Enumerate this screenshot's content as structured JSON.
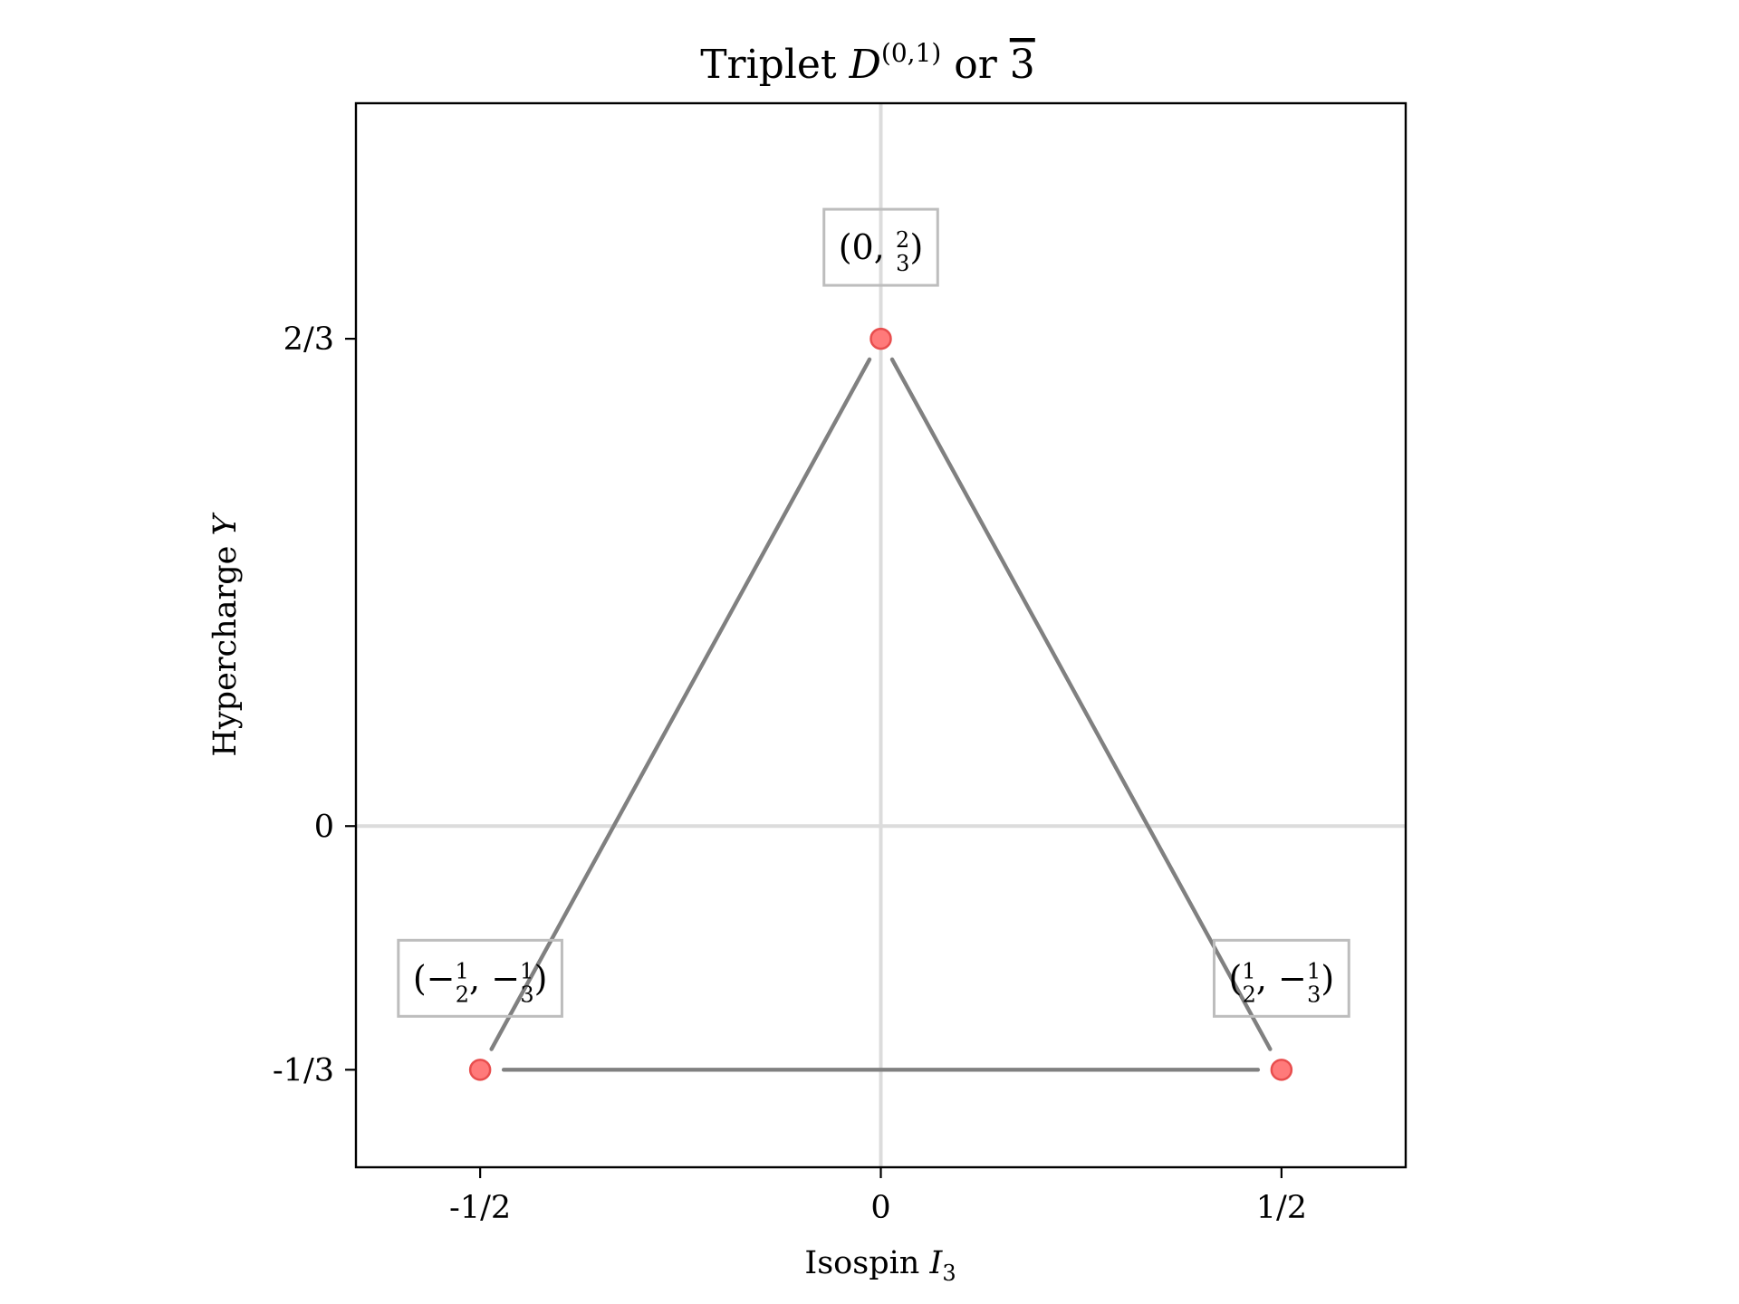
{
  "chart_data": {
    "type": "scatter",
    "title": {
      "prefix": "Triplet ",
      "symbol": "D",
      "superscript": "(0,1)",
      "connector": " or ",
      "rep": "3"
    },
    "xlabel": {
      "text": "Isospin ",
      "symbol": "I",
      "sub": "3"
    },
    "ylabel": {
      "text": "Hypercharge ",
      "symbol": "Y"
    },
    "xlim": [
      -0.655,
      0.655
    ],
    "ylim": [
      -0.4667,
      0.9889
    ],
    "xticks": [
      {
        "value": -0.5,
        "label": "-1/2"
      },
      {
        "value": 0,
        "label": "0"
      },
      {
        "value": 0.5,
        "label": "1/2"
      }
    ],
    "yticks": [
      {
        "value": -0.3333,
        "label": "-1/3"
      },
      {
        "value": 0,
        "label": "0"
      },
      {
        "value": 0.6667,
        "label": "2/3"
      }
    ],
    "points": [
      {
        "x": 0,
        "y": 0.6667,
        "label_parts": [
          "(0, ",
          "2",
          "3",
          ")"
        ]
      },
      {
        "x": -0.5,
        "y": -0.3333,
        "label_parts": [
          "(−",
          "1",
          "2",
          ", −",
          "1",
          "3",
          ")"
        ]
      },
      {
        "x": 0.5,
        "y": -0.3333,
        "label_parts": [
          "(",
          "1",
          "2",
          ", −",
          "1",
          "3",
          ")"
        ]
      }
    ],
    "edges": [
      [
        0,
        1
      ],
      [
        0,
        2
      ],
      [
        1,
        2
      ]
    ],
    "grid": false,
    "reference_lines": {
      "x": 0,
      "y": 0
    },
    "colors": {
      "point": "#ff7a7a",
      "point_edge": "#e84e4e",
      "edge": "#808080",
      "refline": "#dcdcdc",
      "frame": "#000000",
      "box": "#bdbdbd"
    }
  }
}
